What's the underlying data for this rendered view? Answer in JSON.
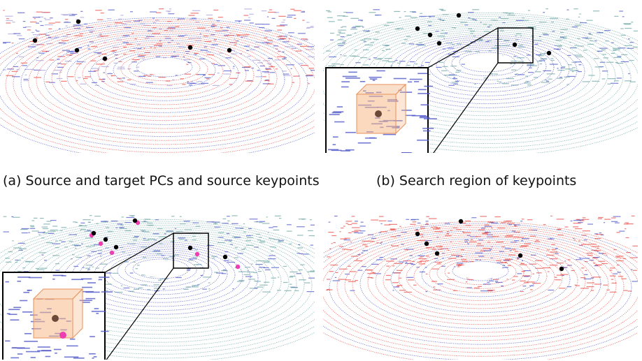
{
  "captions": {
    "a": "(a) Source and target PCs and source keypoints",
    "b": "(b) Search region of keypoints"
  },
  "colors": {
    "source": "#e8504a",
    "target": "#4f57c8",
    "teal": "#6fa7a6",
    "keypoint": "#000000",
    "match": "#ee3fb0",
    "search_box": "#f5b98a"
  }
}
